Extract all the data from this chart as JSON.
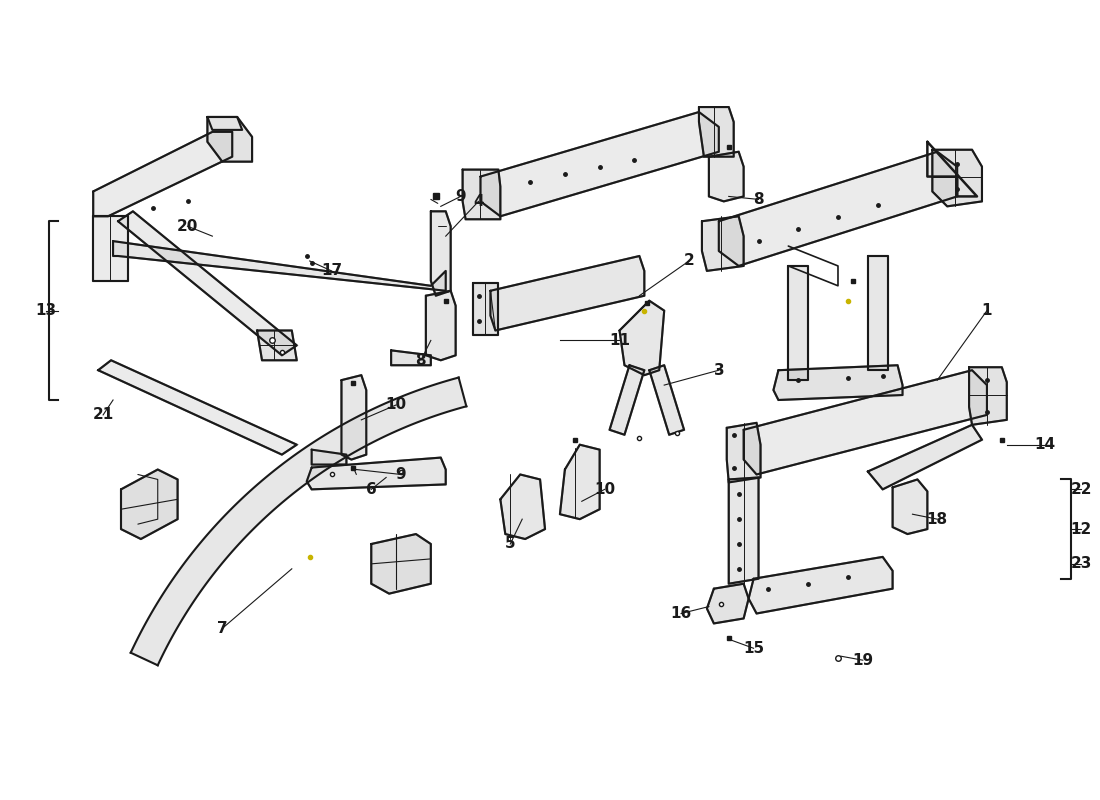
{
  "background_color": "#ffffff",
  "line_color": "#1a1a1a",
  "text_color": "#1a1a1a",
  "label_fontsize": 11,
  "figsize": [
    11.0,
    8.0
  ],
  "dpi": 100
}
